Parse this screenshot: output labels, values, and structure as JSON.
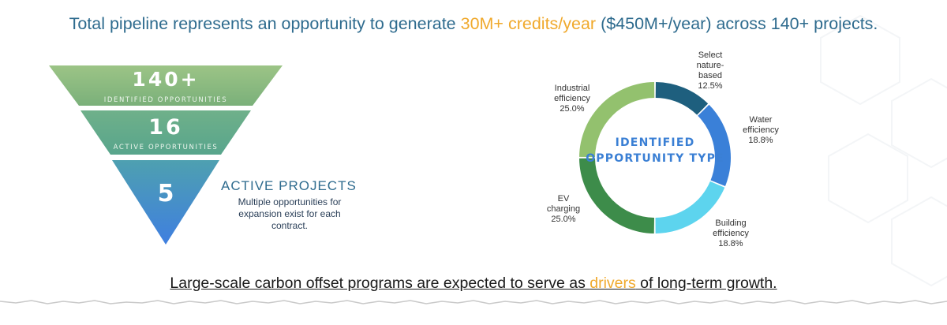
{
  "headline": {
    "pre": "Total pipeline represents an opportunity to generate ",
    "accent": "30M+ credits/year",
    "post": " ($450M+/year) across 140+ projects."
  },
  "funnel": {
    "levels": [
      {
        "number": "140+",
        "caption": "IDENTIFIED OPPORTUNITIES"
      },
      {
        "number": "16",
        "caption": "ACTIVE OPPORTUNITIES"
      },
      {
        "number": "5",
        "caption": ""
      }
    ],
    "active_projects_title": "ACTIVE PROJECTS",
    "active_projects_desc": "Multiple opportunities for expansion exist for each contract.",
    "colors": [
      "#8cb87a",
      "#62a88a",
      "#3f83d4"
    ]
  },
  "chart_data": {
    "type": "pie",
    "title": "IDENTIFIED OPPORTUNITY TYPE",
    "categories": [
      "Select nature-based",
      "Water efficiency",
      "Building efficiency",
      "EV charging",
      "Industrial efficiency"
    ],
    "values": [
      12.5,
      18.8,
      18.8,
      25.0,
      25.0
    ],
    "value_labels": [
      "12.5%",
      "18.8%",
      "18.8%",
      "25.0%",
      "25.0%"
    ],
    "colors": [
      "#1e5f7e",
      "#3a80d8",
      "#5dd4ee",
      "#3d8c4a",
      "#93c16e"
    ]
  },
  "footer": {
    "pre": "Large-scale carbon offset programs are expected to serve as ",
    "accent": "drivers",
    "post": " of long-term growth."
  }
}
